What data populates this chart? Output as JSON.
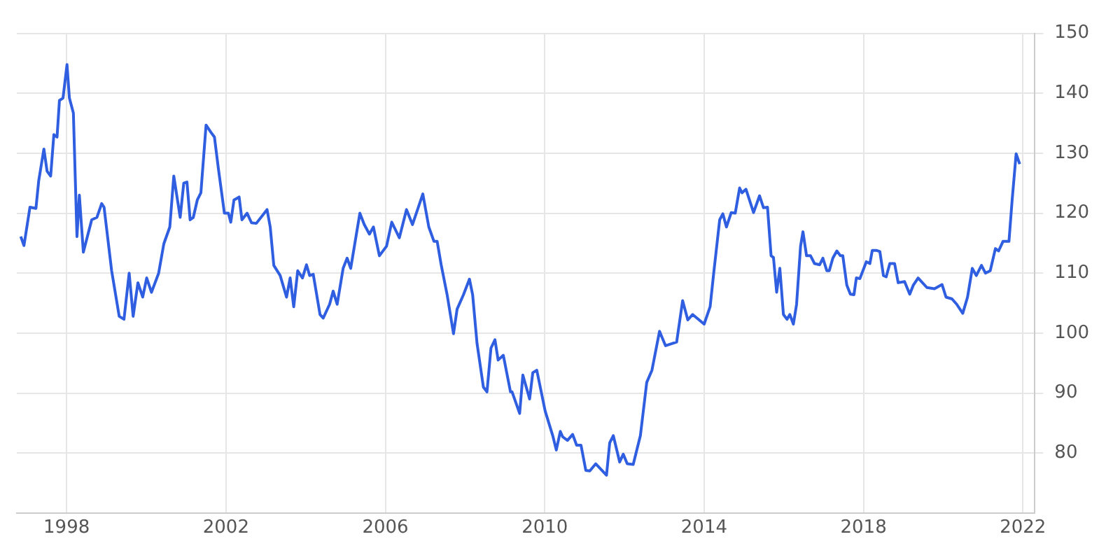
{
  "chart_data": {
    "type": "line",
    "marker": "none",
    "grid": true,
    "legend": false,
    "xlim": [
      1996.75,
      2022.3
    ],
    "xticks": [
      1998,
      2002,
      2006,
      2010,
      2014,
      2018,
      2022
    ],
    "ylim": [
      70,
      150
    ],
    "yticks": [
      80,
      90,
      100,
      110,
      120,
      130,
      140,
      150
    ],
    "series": [
      {
        "color": "#2f5fe0",
        "x": [
          1996.85,
          1996.93,
          1997.08,
          1997.23,
          1997.3,
          1997.43,
          1997.51,
          1997.6,
          1997.68,
          1997.76,
          1997.82,
          1997.91,
          1998.01,
          1998.07,
          1998.17,
          1998.26,
          1998.32,
          1998.42,
          1998.63,
          1998.76,
          1998.88,
          1998.94,
          1999.13,
          1999.32,
          1999.44,
          1999.57,
          1999.67,
          1999.79,
          1999.91,
          2000.01,
          2000.13,
          2000.31,
          2000.44,
          2000.59,
          2000.69,
          2000.85,
          2000.94,
          2001.02,
          2001.1,
          2001.18,
          2001.28,
          2001.37,
          2001.5,
          2001.62,
          2001.71,
          2001.81,
          2001.96,
          2002.06,
          2002.12,
          2002.2,
          2002.33,
          2002.4,
          2002.53,
          2002.64,
          2002.76,
          2003.03,
          2003.11,
          2003.2,
          2003.36,
          2003.52,
          2003.61,
          2003.7,
          2003.8,
          2003.92,
          2004.02,
          2004.1,
          2004.19,
          2004.36,
          2004.44,
          2004.6,
          2004.69,
          2004.79,
          2004.94,
          2005.04,
          2005.13,
          2005.36,
          2005.47,
          2005.6,
          2005.7,
          2005.85,
          2006.03,
          2006.16,
          2006.35,
          2006.53,
          2006.68,
          2006.94,
          2007.09,
          2007.22,
          2007.3,
          2007.4,
          2007.55,
          2007.71,
          2007.8,
          2007.96,
          2008.11,
          2008.19,
          2008.3,
          2008.46,
          2008.55,
          2008.65,
          2008.75,
          2008.83,
          2008.96,
          2009.14,
          2009.18,
          2009.37,
          2009.45,
          2009.62,
          2009.7,
          2009.8,
          2010.01,
          2010.2,
          2010.29,
          2010.39,
          2010.45,
          2010.57,
          2010.7,
          2010.8,
          2010.91,
          2011.03,
          2011.13,
          2011.28,
          2011.55,
          2011.63,
          2011.72,
          2011.88,
          2011.97,
          2012.07,
          2012.22,
          2012.4,
          2012.56,
          2012.69,
          2012.88,
          2013.03,
          2013.31,
          2013.46,
          2013.59,
          2013.71,
          2014.0,
          2014.15,
          2014.24,
          2014.39,
          2014.47,
          2014.56,
          2014.68,
          2014.78,
          2014.89,
          2014.95,
          2015.05,
          2015.24,
          2015.39,
          2015.49,
          2015.59,
          2015.68,
          2015.74,
          2015.82,
          2015.9,
          2015.99,
          2016.08,
          2016.15,
          2016.24,
          2016.32,
          2016.42,
          2016.48,
          2016.57,
          2016.67,
          2016.77,
          2016.9,
          2016.98,
          2017.08,
          2017.14,
          2017.23,
          2017.33,
          2017.42,
          2017.48,
          2017.58,
          2017.67,
          2017.76,
          2017.82,
          2017.91,
          2018.07,
          2018.16,
          2018.22,
          2018.32,
          2018.41,
          2018.5,
          2018.57,
          2018.66,
          2018.78,
          2018.87,
          2019.03,
          2019.16,
          2019.25,
          2019.37,
          2019.59,
          2019.78,
          2019.97,
          2020.07,
          2020.22,
          2020.34,
          2020.49,
          2020.61,
          2020.73,
          2020.83,
          2020.96,
          2021.06,
          2021.18,
          2021.31,
          2021.39,
          2021.5,
          2021.65,
          2021.73,
          2021.83,
          2021.92
        ],
        "values": [
          116.1,
          114.6,
          121.0,
          120.8,
          125.4,
          130.7,
          127.0,
          126.2,
          133.1,
          132.7,
          138.8,
          139.2,
          144.8,
          139.2,
          136.7,
          116.1,
          123.0,
          113.5,
          118.9,
          119.3,
          121.6,
          121.0,
          110.4,
          102.8,
          102.3,
          110.0,
          102.8,
          108.4,
          106.0,
          109.2,
          106.8,
          110.0,
          114.9,
          117.7,
          126.2,
          119.3,
          125.0,
          125.2,
          118.9,
          119.3,
          122.2,
          123.4,
          134.7,
          133.5,
          132.7,
          127.4,
          120.0,
          120.0,
          118.5,
          122.2,
          122.7,
          118.9,
          120.0,
          118.4,
          118.3,
          120.6,
          117.7,
          111.3,
          109.6,
          106.0,
          109.2,
          104.4,
          110.4,
          109.2,
          111.4,
          109.6,
          109.8,
          103.1,
          102.5,
          104.8,
          107.0,
          104.8,
          110.8,
          112.5,
          110.8,
          120.0,
          118.1,
          116.5,
          117.7,
          112.9,
          114.5,
          118.5,
          115.9,
          120.6,
          118.1,
          123.2,
          117.7,
          115.3,
          115.3,
          111.4,
          106.4,
          99.9,
          104.0,
          106.4,
          109.0,
          106.4,
          98.3,
          91.0,
          90.2,
          97.5,
          98.9,
          95.5,
          96.3,
          90.2,
          90.2,
          86.6,
          93.0,
          89.0,
          93.4,
          93.8,
          87.0,
          82.9,
          80.5,
          83.6,
          82.7,
          82.1,
          83.1,
          81.3,
          81.3,
          77.1,
          77.0,
          78.2,
          76.3,
          81.7,
          82.9,
          78.5,
          79.8,
          78.2,
          78.1,
          82.9,
          91.8,
          93.8,
          100.3,
          97.9,
          98.5,
          105.4,
          102.2,
          103.1,
          101.5,
          104.4,
          110.0,
          118.9,
          119.9,
          117.7,
          120.1,
          120.0,
          124.2,
          123.4,
          124.0,
          120.1,
          122.9,
          120.9,
          121.0,
          112.9,
          112.6,
          106.8,
          110.8,
          103.1,
          102.3,
          103.1,
          101.5,
          104.8,
          114.5,
          116.9,
          112.9,
          112.9,
          111.6,
          111.4,
          112.5,
          110.4,
          110.4,
          112.5,
          113.7,
          112.9,
          112.9,
          108.0,
          106.5,
          106.4,
          109.2,
          109.1,
          111.9,
          111.6,
          113.8,
          113.8,
          113.6,
          109.6,
          109.4,
          111.6,
          111.6,
          108.4,
          108.6,
          106.5,
          108.0,
          109.2,
          107.6,
          107.4,
          108.1,
          106.0,
          105.7,
          104.8,
          103.3,
          106.0,
          110.8,
          109.6,
          111.3,
          110.0,
          110.4,
          114.1,
          113.7,
          115.3,
          115.3,
          122.2,
          129.9,
          128.2
        ]
      }
    ]
  }
}
